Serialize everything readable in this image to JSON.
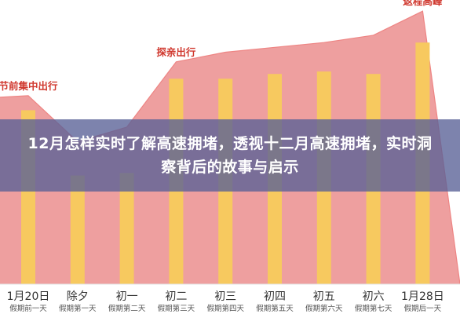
{
  "overlay": {
    "title": "12月怎样实时了解高速拥堵，透视十二月高速拥堵，实时洞察背后的故事与启示"
  },
  "colors": {
    "bar": "#f7c95f",
    "area_fill": "#ed9a9a",
    "area_line": "#ee8584",
    "annotation": "#d0392f",
    "overlay": "#586096"
  },
  "chart_data": {
    "type": "bar",
    "categories": [
      "1月20日",
      "除夕",
      "初一",
      "初二",
      "初三",
      "初四",
      "初五",
      "初六",
      "1月28日"
    ],
    "sublabels": [
      "假期前一天",
      "假期第一天",
      "假期第二天",
      "假期第三天",
      "假期第四天",
      "假期第五天",
      "假期第六天",
      "假期第七天",
      "假期后一天"
    ],
    "values": [
      72,
      45,
      46,
      85,
      85,
      87,
      88,
      87,
      100
    ],
    "area_values": [
      78,
      59,
      65,
      92,
      96,
      98,
      100,
      103,
      113
    ],
    "annotations": [
      {
        "text": "节前集中出行",
        "category_index": 0
      },
      {
        "text": "探亲出行",
        "category_index": 3
      },
      {
        "text": "返程高峰",
        "category_index": 8
      }
    ],
    "title": "",
    "xlabel": "",
    "ylabel": "",
    "ylim": [
      0,
      115
    ],
    "grid": false,
    "legend": "none"
  }
}
